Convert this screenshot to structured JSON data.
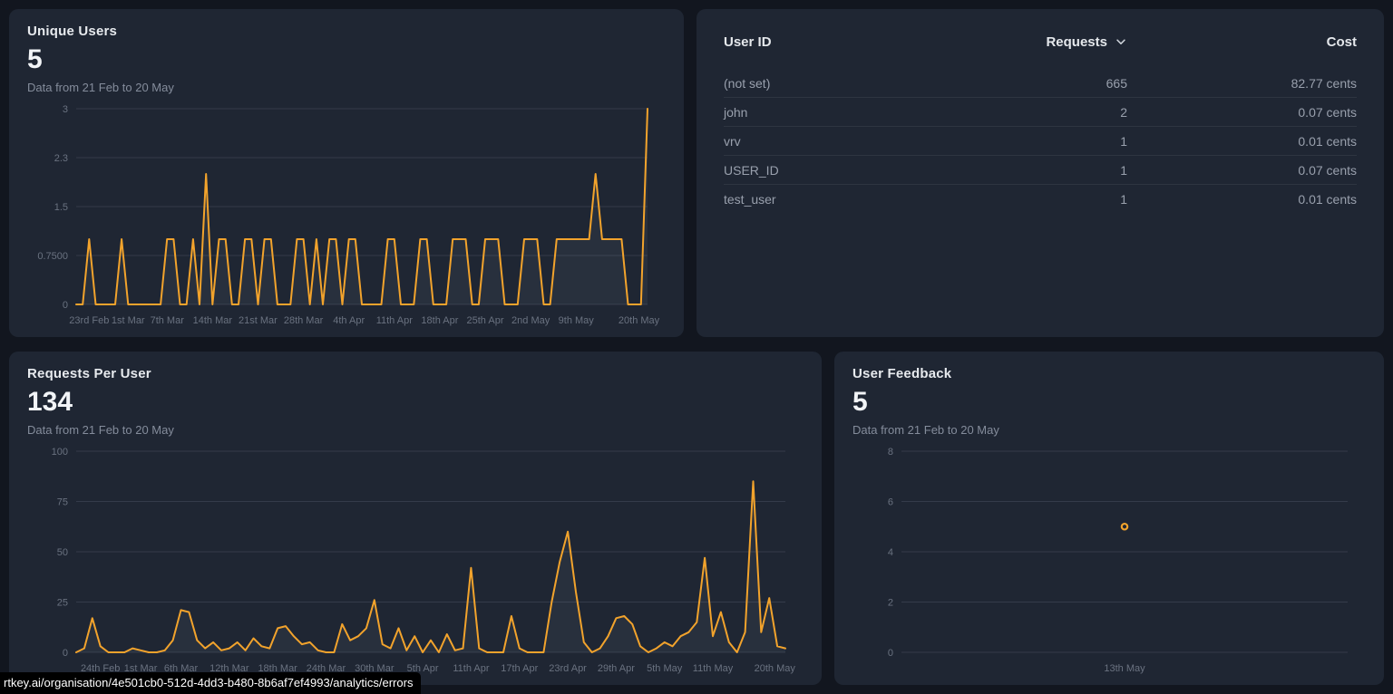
{
  "page": {
    "status_url": "rtkey.ai/organisation/4e501cb0-512d-4dd3-b480-8b6af7ef4993/analytics/errors"
  },
  "colors": {
    "accent": "#F2A32C",
    "panel": "#1F2633",
    "background": "#12161F",
    "grid": "#3A4150",
    "axis_text": "#6A7280",
    "area_fill": "rgba(173,181,199,0.07)"
  },
  "cards": {
    "unique_users": {
      "title": "Unique Users",
      "value": "5",
      "subtitle": "Data from 21 Feb to 20 May",
      "chart_data": {
        "type": "line",
        "title": "Unique Users",
        "ylim": [
          0,
          3
        ],
        "ytick_values": [
          3,
          2.25,
          1.5,
          0.75,
          0
        ],
        "ytick_labels": [
          "3",
          "2.3",
          "1.5",
          "0.7500",
          "0"
        ],
        "x_tick_labels": [
          "23rd Feb",
          "1st Mar",
          "7th Mar",
          "14th Mar",
          "21st Mar",
          "28th Mar",
          "4th Apr",
          "11th Apr",
          "18th Apr",
          "25th Apr",
          "2nd May",
          "9th May",
          "20th May"
        ],
        "x_tick_days": [
          2,
          8,
          14,
          21,
          28,
          35,
          42,
          49,
          56,
          63,
          70,
          77,
          88
        ],
        "total_days": 88,
        "grid": true,
        "values": [
          0,
          0,
          1,
          0,
          0,
          0,
          0,
          1,
          0,
          0,
          0,
          0,
          0,
          0,
          1,
          1,
          0,
          0,
          1,
          0,
          2,
          0,
          1,
          1,
          0,
          0,
          1,
          1,
          0,
          1,
          1,
          0,
          0,
          0,
          1,
          1,
          0,
          1,
          0,
          1,
          1,
          0,
          1,
          1,
          0,
          0,
          0,
          0,
          1,
          1,
          0,
          0,
          0,
          1,
          1,
          0,
          0,
          0,
          1,
          1,
          1,
          0,
          0,
          1,
          1,
          1,
          0,
          0,
          0,
          1,
          1,
          1,
          0,
          0,
          1,
          1,
          1,
          1,
          1,
          1,
          2,
          1,
          1,
          1,
          1,
          0,
          0,
          0,
          3
        ]
      }
    },
    "user_table": {
      "headers": {
        "user_id": "User ID",
        "requests": "Requests",
        "cost": "Cost"
      },
      "rows": [
        {
          "user_id": "(not set)",
          "requests": "665",
          "cost": "82.77 cents"
        },
        {
          "user_id": "john",
          "requests": "2",
          "cost": "0.07 cents"
        },
        {
          "user_id": "vrv",
          "requests": "1",
          "cost": "0.01 cents"
        },
        {
          "user_id": "USER_ID",
          "requests": "1",
          "cost": "0.07 cents"
        },
        {
          "user_id": "test_user",
          "requests": "1",
          "cost": "0.01 cents"
        }
      ]
    },
    "requests_per_user": {
      "title": "Requests Per User",
      "value": "134",
      "subtitle": "Data from 21 Feb to 20 May",
      "chart_data": {
        "type": "line",
        "title": "Requests Per User",
        "ylim": [
          0,
          100
        ],
        "ytick_values": [
          100,
          75,
          50,
          25,
          0
        ],
        "ytick_labels": [
          "100",
          "75",
          "50",
          "25",
          "0"
        ],
        "x_tick_labels": [
          "24th Feb",
          "1st Mar",
          "6th Mar",
          "12th Mar",
          "18th Mar",
          "24th Mar",
          "30th Mar",
          "5th Apr",
          "11th Apr",
          "17th Apr",
          "23rd Apr",
          "29th Apr",
          "5th May",
          "11th May",
          "20th May"
        ],
        "x_tick_days": [
          3,
          8,
          13,
          19,
          25,
          31,
          37,
          43,
          49,
          55,
          61,
          67,
          73,
          79,
          88
        ],
        "total_days": 88,
        "grid": true,
        "values": [
          0,
          2,
          17,
          3,
          0,
          0,
          0,
          2,
          1,
          0,
          0,
          1,
          6,
          21,
          20,
          6,
          2,
          5,
          1,
          2,
          5,
          1,
          7,
          3,
          2,
          12,
          13,
          8,
          4,
          5,
          1,
          0,
          0,
          14,
          6,
          8,
          12,
          26,
          4,
          2,
          12,
          1,
          8,
          0,
          6,
          0,
          9,
          1,
          2,
          42,
          2,
          0,
          0,
          0,
          18,
          2,
          0,
          0,
          0,
          25,
          45,
          60,
          30,
          5,
          0,
          2,
          8,
          17,
          18,
          14,
          3,
          0,
          2,
          5,
          3,
          8,
          10,
          15,
          47,
          8,
          20,
          5,
          0,
          10,
          85,
          10,
          27,
          3,
          2
        ]
      }
    },
    "user_feedback": {
      "title": "User Feedback",
      "value": "5",
      "subtitle": "Data from 21 Feb to 20 May",
      "chart_data": {
        "type": "scatter",
        "title": "User Feedback",
        "ylim": [
          0,
          8
        ],
        "ytick_values": [
          8,
          6,
          4,
          2,
          0
        ],
        "ytick_labels": [
          "8",
          "6",
          "4",
          "2",
          "0"
        ],
        "x_tick_labels": [
          "13th May"
        ],
        "x_tick_positions": [
          0.5
        ],
        "grid": true,
        "points": [
          {
            "x": 0.5,
            "y": 5,
            "label": "13th May"
          }
        ]
      }
    }
  }
}
